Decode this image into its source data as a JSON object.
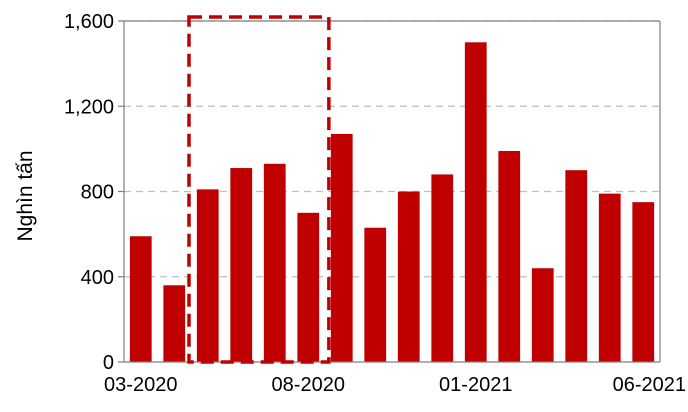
{
  "chart_data": {
    "type": "bar",
    "categories": [
      "03-2020",
      "04-2020",
      "05-2020",
      "06-2020",
      "07-2020",
      "08-2020",
      "09-2020",
      "10-2020",
      "11-2020",
      "12-2020",
      "01-2021",
      "02-2021",
      "03-2021",
      "04-2021",
      "05-2021",
      "06-2021"
    ],
    "x_tick_labels": [
      "03-2020",
      "08-2020",
      "01-2021",
      "06-2021"
    ],
    "values": [
      590,
      360,
      810,
      910,
      930,
      700,
      1070,
      630,
      800,
      880,
      1500,
      990,
      440,
      900,
      790,
      750
    ],
    "title": "",
    "xlabel": "",
    "ylabel": "Nghìn tấn",
    "ylim": [
      0,
      1600
    ],
    "y_tick_labels": [
      "0",
      "400",
      "800",
      "1,200",
      "1,600"
    ],
    "grid": "horizontal dashed",
    "highlight": {
      "style": "dashed box",
      "start_category": "04-2020",
      "end_category": "09-2020"
    },
    "colors": {
      "bar": "#c00000",
      "highlight": "#c00000",
      "grid": "#bfbfbf",
      "axis": "#7f7f7f"
    }
  }
}
